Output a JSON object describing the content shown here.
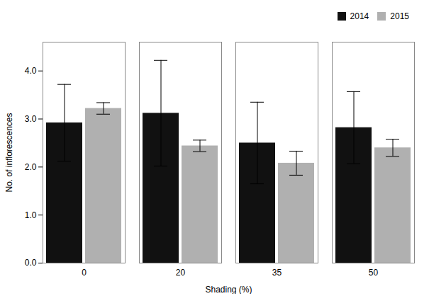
{
  "chart_data": {
    "type": "bar",
    "xlabel": "Shading (%)",
    "ylabel": "No. of inflorescences",
    "categories": [
      "0",
      "20",
      "35",
      "50"
    ],
    "series": [
      {
        "name": "2014",
        "color": "#111111",
        "values": [
          2.92,
          3.12,
          2.5,
          2.82
        ],
        "errors": [
          0.8,
          1.1,
          0.85,
          0.75
        ]
      },
      {
        "name": "2015",
        "color": "#b0b0b0",
        "values": [
          3.22,
          2.44,
          2.08,
          2.4
        ],
        "errors": [
          0.12,
          0.12,
          0.25,
          0.18
        ]
      }
    ],
    "ylim": [
      0,
      4.6
    ],
    "yticks": [
      0,
      1,
      2,
      3,
      4
    ],
    "grid": false,
    "legend": "upper right"
  }
}
